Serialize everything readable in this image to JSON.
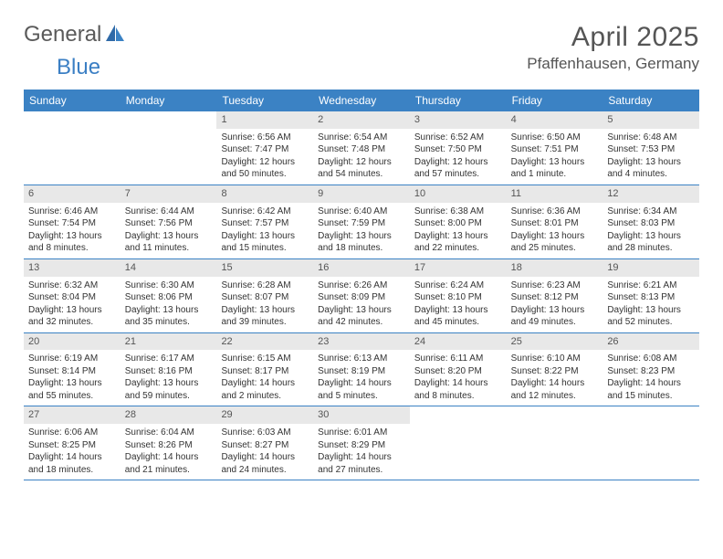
{
  "logo": {
    "text1": "General",
    "text2": "Blue"
  },
  "title": "April 2025",
  "location": "Pfaffenhausen, Germany",
  "colors": {
    "header_bg": "#3b82c4",
    "header_text": "#ffffff",
    "daynum_bg": "#e8e8e8",
    "border": "#3b82c4",
    "logo_gray": "#5a5a5a",
    "logo_blue": "#3b7fc4"
  },
  "day_headers": [
    "Sunday",
    "Monday",
    "Tuesday",
    "Wednesday",
    "Thursday",
    "Friday",
    "Saturday"
  ],
  "weeks": [
    [
      {
        "n": "",
        "sr": "",
        "ss": "",
        "dl": ""
      },
      {
        "n": "",
        "sr": "",
        "ss": "",
        "dl": ""
      },
      {
        "n": "1",
        "sr": "Sunrise: 6:56 AM",
        "ss": "Sunset: 7:47 PM",
        "dl": "Daylight: 12 hours and 50 minutes."
      },
      {
        "n": "2",
        "sr": "Sunrise: 6:54 AM",
        "ss": "Sunset: 7:48 PM",
        "dl": "Daylight: 12 hours and 54 minutes."
      },
      {
        "n": "3",
        "sr": "Sunrise: 6:52 AM",
        "ss": "Sunset: 7:50 PM",
        "dl": "Daylight: 12 hours and 57 minutes."
      },
      {
        "n": "4",
        "sr": "Sunrise: 6:50 AM",
        "ss": "Sunset: 7:51 PM",
        "dl": "Daylight: 13 hours and 1 minute."
      },
      {
        "n": "5",
        "sr": "Sunrise: 6:48 AM",
        "ss": "Sunset: 7:53 PM",
        "dl": "Daylight: 13 hours and 4 minutes."
      }
    ],
    [
      {
        "n": "6",
        "sr": "Sunrise: 6:46 AM",
        "ss": "Sunset: 7:54 PM",
        "dl": "Daylight: 13 hours and 8 minutes."
      },
      {
        "n": "7",
        "sr": "Sunrise: 6:44 AM",
        "ss": "Sunset: 7:56 PM",
        "dl": "Daylight: 13 hours and 11 minutes."
      },
      {
        "n": "8",
        "sr": "Sunrise: 6:42 AM",
        "ss": "Sunset: 7:57 PM",
        "dl": "Daylight: 13 hours and 15 minutes."
      },
      {
        "n": "9",
        "sr": "Sunrise: 6:40 AM",
        "ss": "Sunset: 7:59 PM",
        "dl": "Daylight: 13 hours and 18 minutes."
      },
      {
        "n": "10",
        "sr": "Sunrise: 6:38 AM",
        "ss": "Sunset: 8:00 PM",
        "dl": "Daylight: 13 hours and 22 minutes."
      },
      {
        "n": "11",
        "sr": "Sunrise: 6:36 AM",
        "ss": "Sunset: 8:01 PM",
        "dl": "Daylight: 13 hours and 25 minutes."
      },
      {
        "n": "12",
        "sr": "Sunrise: 6:34 AM",
        "ss": "Sunset: 8:03 PM",
        "dl": "Daylight: 13 hours and 28 minutes."
      }
    ],
    [
      {
        "n": "13",
        "sr": "Sunrise: 6:32 AM",
        "ss": "Sunset: 8:04 PM",
        "dl": "Daylight: 13 hours and 32 minutes."
      },
      {
        "n": "14",
        "sr": "Sunrise: 6:30 AM",
        "ss": "Sunset: 8:06 PM",
        "dl": "Daylight: 13 hours and 35 minutes."
      },
      {
        "n": "15",
        "sr": "Sunrise: 6:28 AM",
        "ss": "Sunset: 8:07 PM",
        "dl": "Daylight: 13 hours and 39 minutes."
      },
      {
        "n": "16",
        "sr": "Sunrise: 6:26 AM",
        "ss": "Sunset: 8:09 PM",
        "dl": "Daylight: 13 hours and 42 minutes."
      },
      {
        "n": "17",
        "sr": "Sunrise: 6:24 AM",
        "ss": "Sunset: 8:10 PM",
        "dl": "Daylight: 13 hours and 45 minutes."
      },
      {
        "n": "18",
        "sr": "Sunrise: 6:23 AM",
        "ss": "Sunset: 8:12 PM",
        "dl": "Daylight: 13 hours and 49 minutes."
      },
      {
        "n": "19",
        "sr": "Sunrise: 6:21 AM",
        "ss": "Sunset: 8:13 PM",
        "dl": "Daylight: 13 hours and 52 minutes."
      }
    ],
    [
      {
        "n": "20",
        "sr": "Sunrise: 6:19 AM",
        "ss": "Sunset: 8:14 PM",
        "dl": "Daylight: 13 hours and 55 minutes."
      },
      {
        "n": "21",
        "sr": "Sunrise: 6:17 AM",
        "ss": "Sunset: 8:16 PM",
        "dl": "Daylight: 13 hours and 59 minutes."
      },
      {
        "n": "22",
        "sr": "Sunrise: 6:15 AM",
        "ss": "Sunset: 8:17 PM",
        "dl": "Daylight: 14 hours and 2 minutes."
      },
      {
        "n": "23",
        "sr": "Sunrise: 6:13 AM",
        "ss": "Sunset: 8:19 PM",
        "dl": "Daylight: 14 hours and 5 minutes."
      },
      {
        "n": "24",
        "sr": "Sunrise: 6:11 AM",
        "ss": "Sunset: 8:20 PM",
        "dl": "Daylight: 14 hours and 8 minutes."
      },
      {
        "n": "25",
        "sr": "Sunrise: 6:10 AM",
        "ss": "Sunset: 8:22 PM",
        "dl": "Daylight: 14 hours and 12 minutes."
      },
      {
        "n": "26",
        "sr": "Sunrise: 6:08 AM",
        "ss": "Sunset: 8:23 PM",
        "dl": "Daylight: 14 hours and 15 minutes."
      }
    ],
    [
      {
        "n": "27",
        "sr": "Sunrise: 6:06 AM",
        "ss": "Sunset: 8:25 PM",
        "dl": "Daylight: 14 hours and 18 minutes."
      },
      {
        "n": "28",
        "sr": "Sunrise: 6:04 AM",
        "ss": "Sunset: 8:26 PM",
        "dl": "Daylight: 14 hours and 21 minutes."
      },
      {
        "n": "29",
        "sr": "Sunrise: 6:03 AM",
        "ss": "Sunset: 8:27 PM",
        "dl": "Daylight: 14 hours and 24 minutes."
      },
      {
        "n": "30",
        "sr": "Sunrise: 6:01 AM",
        "ss": "Sunset: 8:29 PM",
        "dl": "Daylight: 14 hours and 27 minutes."
      },
      {
        "n": "",
        "sr": "",
        "ss": "",
        "dl": ""
      },
      {
        "n": "",
        "sr": "",
        "ss": "",
        "dl": ""
      },
      {
        "n": "",
        "sr": "",
        "ss": "",
        "dl": ""
      }
    ]
  ]
}
